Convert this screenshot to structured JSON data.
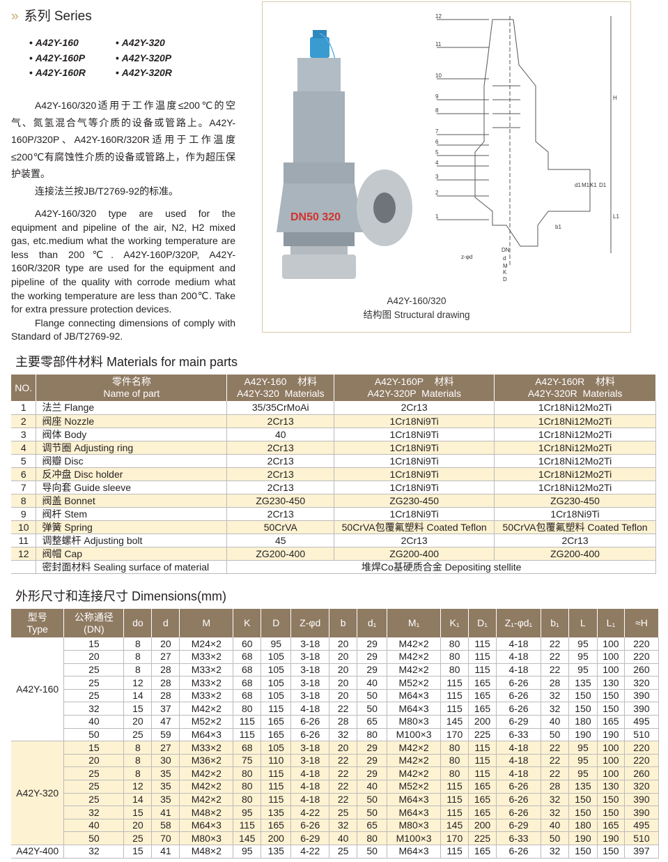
{
  "header": {
    "chevron": "»",
    "title": "系列 Series"
  },
  "series": {
    "left": [
      "A42Y-160",
      "A42Y-160P",
      "A42Y-160R"
    ],
    "right": [
      "A42Y-320",
      "A42Y-320P",
      "A42Y-320R"
    ]
  },
  "desc_cn": [
    "A42Y-160/320适用于工作温度≤200℃的空气、氮氢混合气等介质的设备或管路上。A42Y-160P/320P、A42Y-160R/320R适用于工作温度≤200℃有腐蚀性介质的设备或管路上，作为超压保护装置。",
    "连接法兰按JB/T2769-92的标准。"
  ],
  "desc_en": [
    "A42Y-160/320 type are used for the equipment and pipeline of the air, N2, H2 mixed gas, etc.medium what the working temperature are less than 200℃. A42Y-160P/320P, A42Y-160R/320R type are used for the equipment and pipeline of the quality with corrode medium what the working temperature are less than 200℃. Take for extra pressure protection devices.",
    "Flange connecting dimensions of comply with Standard of JB/T2769-92."
  ],
  "figure": {
    "valve_marking": "DN50 320",
    "model": "A42Y-160/320",
    "caption": "结构图 Structural drawing",
    "part_numbers": [
      "12",
      "11",
      "10",
      "9",
      "8",
      "7",
      "6",
      "5",
      "4",
      "3",
      "2",
      "1"
    ],
    "dim_labels": [
      "H",
      "d1",
      "M1",
      "K1",
      "D1",
      "L1",
      "b1",
      "DN",
      "d",
      "M",
      "K",
      "D",
      "z-φd"
    ]
  },
  "materials": {
    "title": "主要零部件材料 Materials for main parts",
    "headers": [
      "NO.",
      "零件名称\nName of part",
      "A42Y-160    材料\nA42Y-320  Materials",
      "A42Y-160P    材料\nA42Y-320P  Materials",
      "A42Y-160R    材料\nA42Y-320R  Materials"
    ],
    "rows": [
      [
        "1",
        "法兰  Flange",
        "35/35CrMoAi",
        "2Cr13",
        "1Cr18Ni12Mo2Ti"
      ],
      [
        "2",
        "阀座  Nozzle",
        "2Cr13",
        "1Cr18Ni9Ti",
        "1Cr18Ni12Mo2Ti"
      ],
      [
        "3",
        "阀体  Body",
        "40",
        "1Cr18Ni9Ti",
        "1Cr18Ni12Mo2Ti"
      ],
      [
        "4",
        "调节圈  Adjusting ring",
        "2Cr13",
        "1Cr18Ni9Ti",
        "1Cr18Ni12Mo2Ti"
      ],
      [
        "5",
        "阀瓣  Disc",
        "2Cr13",
        "1Cr18Ni9Ti",
        "1Cr18Ni12Mo2Ti"
      ],
      [
        "6",
        "反冲盘  Disc holder",
        "2Cr13",
        "1Cr18Ni9Ti",
        "1Cr18Ni12Mo2Ti"
      ],
      [
        "7",
        "导向套  Guide sleeve",
        "2Cr13",
        "1Cr18Ni9Ti",
        "1Cr18Ni12Mo2Ti"
      ],
      [
        "8",
        "阀盖  Bonnet",
        "ZG230-450",
        "ZG230-450",
        "ZG230-450"
      ],
      [
        "9",
        "阀杆  Stem",
        "2Cr13",
        "1Cr18Ni9Ti",
        "1Cr18Ni9Ti"
      ],
      [
        "10",
        "弹簧  Spring",
        "50CrVA",
        "50CrVA包覆氟塑料  Coated Teflon",
        "50CrVA包覆氟塑料  Coated Teflon"
      ],
      [
        "11",
        "调整螺杆  Adjusting bolt",
        "45",
        "2Cr13",
        "2Cr13"
      ],
      [
        "12",
        "阀帽  Cap",
        "ZG200-400",
        "ZG200-400",
        "ZG200-400"
      ]
    ],
    "sealing": {
      "label": "密封面材料  Sealing surface of material",
      "value": "堆焊Co基硬质合金  Depositing stellite"
    }
  },
  "dimensions": {
    "title": "外形尺寸和连接尺寸  Dimensions(mm)",
    "headers": [
      "型号\nType",
      "公称通径\n(DN)",
      "do",
      "d",
      "M",
      "K",
      "D",
      "Z-φd",
      "b",
      "d₁",
      "M₁",
      "K₁",
      "D₁",
      "Z₁-φd₁",
      "b₁",
      "L",
      "L₁",
      "≈H"
    ],
    "groups": [
      {
        "type": "A42Y-160",
        "rows": [
          [
            "15",
            "8",
            "20",
            "M24×2",
            "60",
            "95",
            "3-18",
            "20",
            "29",
            "M42×2",
            "80",
            "115",
            "4-18",
            "22",
            "95",
            "100",
            "220"
          ],
          [
            "20",
            "8",
            "27",
            "M33×2",
            "68",
            "105",
            "3-18",
            "20",
            "29",
            "M42×2",
            "80",
            "115",
            "4-18",
            "22",
            "95",
            "100",
            "220"
          ],
          [
            "25",
            "8",
            "28",
            "M33×2",
            "68",
            "105",
            "3-18",
            "20",
            "29",
            "M42×2",
            "80",
            "115",
            "4-18",
            "22",
            "95",
            "100",
            "260"
          ],
          [
            "25",
            "12",
            "28",
            "M33×2",
            "68",
            "105",
            "3-18",
            "20",
            "40",
            "M52×2",
            "115",
            "165",
            "6-26",
            "28",
            "135",
            "130",
            "320"
          ],
          [
            "25",
            "14",
            "28",
            "M33×2",
            "68",
            "105",
            "3-18",
            "20",
            "50",
            "M64×3",
            "115",
            "165",
            "6-26",
            "32",
            "150",
            "150",
            "390"
          ],
          [
            "32",
            "15",
            "37",
            "M42×2",
            "80",
            "115",
            "4-18",
            "22",
            "50",
            "M64×3",
            "115",
            "165",
            "6-26",
            "32",
            "150",
            "150",
            "390"
          ],
          [
            "40",
            "20",
            "47",
            "M52×2",
            "115",
            "165",
            "6-26",
            "28",
            "65",
            "M80×3",
            "145",
            "200",
            "6-29",
            "40",
            "180",
            "165",
            "495"
          ],
          [
            "50",
            "25",
            "59",
            "M64×3",
            "115",
            "165",
            "6-26",
            "32",
            "80",
            "M100×3",
            "170",
            "225",
            "6-33",
            "50",
            "190",
            "190",
            "510"
          ]
        ]
      },
      {
        "type": "A42Y-320",
        "rows": [
          [
            "15",
            "8",
            "27",
            "M33×2",
            "68",
            "105",
            "3-18",
            "20",
            "29",
            "M42×2",
            "80",
            "115",
            "4-18",
            "22",
            "95",
            "100",
            "220"
          ],
          [
            "20",
            "8",
            "30",
            "M36×2",
            "75",
            "110",
            "3-18",
            "22",
            "29",
            "M42×2",
            "80",
            "115",
            "4-18",
            "22",
            "95",
            "100",
            "220"
          ],
          [
            "25",
            "8",
            "35",
            "M42×2",
            "80",
            "115",
            "4-18",
            "22",
            "29",
            "M42×2",
            "80",
            "115",
            "4-18",
            "22",
            "95",
            "100",
            "260"
          ],
          [
            "25",
            "12",
            "35",
            "M42×2",
            "80",
            "115",
            "4-18",
            "22",
            "40",
            "M52×2",
            "115",
            "165",
            "6-26",
            "28",
            "135",
            "130",
            "320"
          ],
          [
            "25",
            "14",
            "35",
            "M42×2",
            "80",
            "115",
            "4-18",
            "22",
            "50",
            "M64×3",
            "115",
            "165",
            "6-26",
            "32",
            "150",
            "150",
            "390"
          ],
          [
            "32",
            "15",
            "41",
            "M48×2",
            "95",
            "135",
            "4-22",
            "25",
            "50",
            "M64×3",
            "115",
            "165",
            "6-26",
            "32",
            "150",
            "150",
            "390"
          ],
          [
            "40",
            "20",
            "58",
            "M64×3",
            "115",
            "165",
            "6-26",
            "32",
            "65",
            "M80×3",
            "145",
            "200",
            "6-29",
            "40",
            "180",
            "165",
            "495"
          ],
          [
            "50",
            "25",
            "70",
            "M80×3",
            "145",
            "200",
            "6-29",
            "40",
            "80",
            "M100×3",
            "170",
            "225",
            "6-33",
            "50",
            "190",
            "190",
            "510"
          ]
        ]
      },
      {
        "type": "A42Y-400",
        "rows": [
          [
            "32",
            "15",
            "41",
            "M48×2",
            "95",
            "135",
            "4-22",
            "25",
            "50",
            "M64×3",
            "115",
            "165",
            "6-26",
            "32",
            "150",
            "150",
            "397"
          ]
        ]
      }
    ]
  },
  "colors": {
    "header_bg": "#8f7a62",
    "alt_row": "#fdf2d2",
    "valve_body": "#a9b4bd",
    "valve_cap": "#3a9bd0",
    "marking": "#d0342c"
  }
}
